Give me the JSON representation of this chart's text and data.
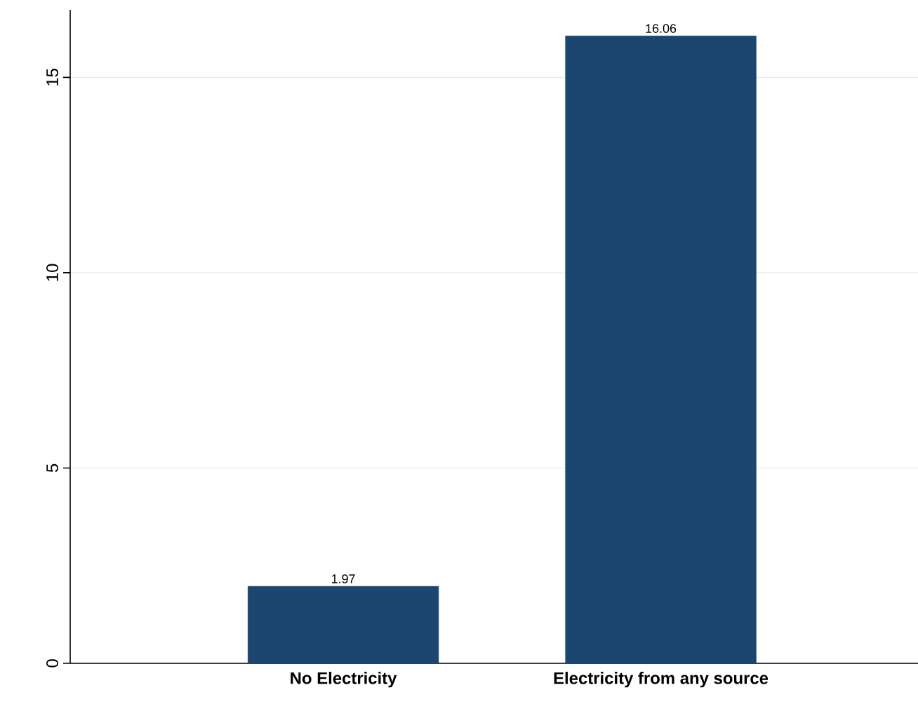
{
  "chart_data": {
    "type": "bar",
    "categories": [
      "No Electricity",
      "Electricity from any source"
    ],
    "values": [
      1.97,
      16.06
    ],
    "color": "#1b4670",
    "ylim": [
      0,
      16.73
    ],
    "yticks": [
      0,
      5,
      10,
      15
    ],
    "grid": "y",
    "data_labels": true
  }
}
